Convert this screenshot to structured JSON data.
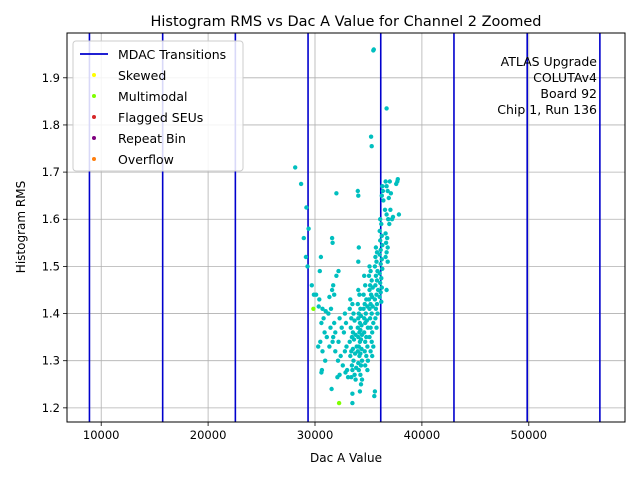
{
  "chart_data": {
    "type": "scatter",
    "title": "Histogram RMS vs Dac A Value for Channel 2 Zoomed",
    "xlabel": "Dac A Value",
    "ylabel": "Histogram RMS",
    "xlim": [
      6800,
      59000
    ],
    "ylim": [
      1.17,
      1.995
    ],
    "xticks": [
      10000,
      20000,
      30000,
      40000,
      50000
    ],
    "yticks": [
      1.2,
      1.3,
      1.4,
      1.5,
      1.6,
      1.7,
      1.8,
      1.9
    ],
    "grid": true,
    "legend_placement": "top-left",
    "annotation": [
      "ATLAS Upgrade",
      "COLUTAv4",
      "Board 92",
      "Chip 1, Run 136"
    ],
    "mdac_transitions": {
      "name": "MDAC Transitions",
      "color": "#0000cd",
      "x": [
        8900,
        15750,
        22550,
        29350,
        36150,
        43000,
        49850,
        56650
      ]
    },
    "series": [
      {
        "name": "Skewed",
        "color": "#ffff00",
        "points": []
      },
      {
        "name": "Multimodal",
        "color": "#7fff00",
        "points": [
          [
            29850,
            1.41
          ],
          [
            32250,
            1.21
          ]
        ]
      },
      {
        "name": "Flagged SEUs",
        "color": "#d62728",
        "points": []
      },
      {
        "name": "Repeat Bin",
        "color": "#800080",
        "points": []
      },
      {
        "name": "Overflow",
        "color": "#ff7f0e",
        "points": []
      },
      {
        "name": "",
        "color": "#00bfbf",
        "points": [
          [
            35500,
            1.96
          ],
          [
            35450,
            1.958
          ],
          [
            36700,
            1.835
          ],
          [
            35250,
            1.775
          ],
          [
            35300,
            1.755
          ],
          [
            28150,
            1.71
          ],
          [
            28700,
            1.675
          ],
          [
            29200,
            1.625
          ],
          [
            29400,
            1.58
          ],
          [
            28950,
            1.56
          ],
          [
            29150,
            1.52
          ],
          [
            29300,
            1.5
          ],
          [
            30550,
            1.52
          ],
          [
            30450,
            1.49
          ],
          [
            29700,
            1.46
          ],
          [
            29900,
            1.44
          ],
          [
            30400,
            1.43
          ],
          [
            30100,
            1.44
          ],
          [
            30350,
            1.415
          ],
          [
            30700,
            1.41
          ],
          [
            30800,
            1.39
          ],
          [
            30600,
            1.38
          ],
          [
            31000,
            1.405
          ],
          [
            30900,
            1.36
          ],
          [
            30500,
            1.34
          ],
          [
            30300,
            1.33
          ],
          [
            31100,
            1.35
          ],
          [
            30700,
            1.32
          ],
          [
            30950,
            1.3
          ],
          [
            30650,
            1.28
          ],
          [
            30600,
            1.275
          ],
          [
            31600,
            1.56
          ],
          [
            31650,
            1.55
          ],
          [
            32000,
            1.655
          ],
          [
            31700,
            1.46
          ],
          [
            31600,
            1.45
          ],
          [
            31500,
            1.41
          ],
          [
            31800,
            1.44
          ],
          [
            31350,
            1.435
          ],
          [
            31250,
            1.4
          ],
          [
            31800,
            1.38
          ],
          [
            31450,
            1.37
          ],
          [
            31900,
            1.36
          ],
          [
            31700,
            1.35
          ],
          [
            31650,
            1.34
          ],
          [
            31350,
            1.33
          ],
          [
            31900,
            1.32
          ],
          [
            31550,
            1.24
          ],
          [
            32200,
            1.49
          ],
          [
            32000,
            1.48
          ],
          [
            32300,
            1.39
          ],
          [
            32500,
            1.37
          ],
          [
            32200,
            1.34
          ],
          [
            32400,
            1.31
          ],
          [
            32150,
            1.3
          ],
          [
            32600,
            1.29
          ],
          [
            32300,
            1.27
          ],
          [
            32100,
            1.265
          ],
          [
            32800,
            1.4
          ],
          [
            32900,
            1.38
          ],
          [
            32700,
            1.36
          ],
          [
            32950,
            1.33
          ],
          [
            32800,
            1.32
          ],
          [
            33000,
            1.28
          ],
          [
            32850,
            1.275
          ],
          [
            33100,
            1.265
          ],
          [
            33300,
            1.43
          ],
          [
            33500,
            1.42
          ],
          [
            33250,
            1.41
          ],
          [
            33600,
            1.4
          ],
          [
            33400,
            1.39
          ],
          [
            33700,
            1.385
          ],
          [
            33350,
            1.37
          ],
          [
            33550,
            1.36
          ],
          [
            33800,
            1.355
          ],
          [
            33450,
            1.35
          ],
          [
            33650,
            1.345
          ],
          [
            33250,
            1.34
          ],
          [
            33900,
            1.33
          ],
          [
            33550,
            1.325
          ],
          [
            33400,
            1.32
          ],
          [
            33750,
            1.315
          ],
          [
            33300,
            1.31
          ],
          [
            33600,
            1.3
          ],
          [
            33450,
            1.29
          ],
          [
            33850,
            1.285
          ],
          [
            33500,
            1.28
          ],
          [
            33700,
            1.27
          ],
          [
            33400,
            1.265
          ],
          [
            33800,
            1.26
          ],
          [
            33500,
            1.23
          ],
          [
            33500,
            1.21
          ],
          [
            34000,
            1.66
          ],
          [
            34050,
            1.65
          ],
          [
            34100,
            1.54
          ],
          [
            34050,
            1.51
          ],
          [
            34050,
            1.45
          ],
          [
            34150,
            1.44
          ],
          [
            34000,
            1.42
          ],
          [
            34250,
            1.41
          ],
          [
            34100,
            1.4
          ],
          [
            34300,
            1.395
          ],
          [
            34050,
            1.39
          ],
          [
            34200,
            1.38
          ],
          [
            34350,
            1.375
          ],
          [
            34000,
            1.37
          ],
          [
            34250,
            1.365
          ],
          [
            34150,
            1.36
          ],
          [
            34400,
            1.355
          ],
          [
            34050,
            1.35
          ],
          [
            34300,
            1.345
          ],
          [
            34200,
            1.34
          ],
          [
            34100,
            1.33
          ],
          [
            34350,
            1.325
          ],
          [
            34000,
            1.32
          ],
          [
            34250,
            1.315
          ],
          [
            34150,
            1.31
          ],
          [
            34400,
            1.3
          ],
          [
            34050,
            1.295
          ],
          [
            34300,
            1.29
          ],
          [
            34100,
            1.28
          ],
          [
            34250,
            1.27
          ],
          [
            34400,
            1.26
          ],
          [
            34300,
            1.25
          ],
          [
            34200,
            1.235
          ],
          [
            34600,
            1.48
          ],
          [
            34700,
            1.46
          ],
          [
            34550,
            1.44
          ],
          [
            34800,
            1.43
          ],
          [
            34650,
            1.42
          ],
          [
            34900,
            1.415
          ],
          [
            34550,
            1.41
          ],
          [
            34750,
            1.4
          ],
          [
            34600,
            1.39
          ],
          [
            34850,
            1.385
          ],
          [
            34700,
            1.38
          ],
          [
            34950,
            1.37
          ],
          [
            34600,
            1.36
          ],
          [
            34800,
            1.35
          ],
          [
            34700,
            1.34
          ],
          [
            34900,
            1.33
          ],
          [
            34650,
            1.32
          ],
          [
            34800,
            1.31
          ],
          [
            34950,
            1.3
          ],
          [
            34700,
            1.29
          ],
          [
            34900,
            1.28
          ],
          [
            35100,
            1.5
          ],
          [
            35200,
            1.49
          ],
          [
            35050,
            1.48
          ],
          [
            35300,
            1.47
          ],
          [
            35150,
            1.46
          ],
          [
            35400,
            1.455
          ],
          [
            35100,
            1.45
          ],
          [
            35250,
            1.44
          ],
          [
            35350,
            1.435
          ],
          [
            35050,
            1.43
          ],
          [
            35200,
            1.42
          ],
          [
            35400,
            1.415
          ],
          [
            35100,
            1.41
          ],
          [
            35300,
            1.4
          ],
          [
            35150,
            1.39
          ],
          [
            35450,
            1.38
          ],
          [
            35200,
            1.37
          ],
          [
            35350,
            1.36
          ],
          [
            35100,
            1.35
          ],
          [
            35300,
            1.34
          ],
          [
            35450,
            1.33
          ],
          [
            35200,
            1.32
          ],
          [
            35350,
            1.31
          ],
          [
            35700,
            1.54
          ],
          [
            35800,
            1.53
          ],
          [
            35650,
            1.52
          ],
          [
            35750,
            1.51
          ],
          [
            35600,
            1.5
          ],
          [
            35850,
            1.49
          ],
          [
            35700,
            1.48
          ],
          [
            35800,
            1.47
          ],
          [
            35650,
            1.46
          ],
          [
            35900,
            1.45
          ],
          [
            35750,
            1.44
          ],
          [
            35600,
            1.43
          ],
          [
            35800,
            1.42
          ],
          [
            35700,
            1.41
          ],
          [
            35850,
            1.4
          ],
          [
            35650,
            1.39
          ],
          [
            35750,
            1.37
          ],
          [
            35600,
            1.235
          ],
          [
            35550,
            1.225
          ],
          [
            36100,
            1.6
          ],
          [
            36200,
            1.59
          ],
          [
            36050,
            1.575
          ],
          [
            36250,
            1.565
          ],
          [
            36100,
            1.555
          ],
          [
            36300,
            1.545
          ],
          [
            36150,
            1.535
          ],
          [
            36050,
            1.525
          ],
          [
            36250,
            1.515
          ],
          [
            36150,
            1.505
          ],
          [
            36300,
            1.495
          ],
          [
            36050,
            1.485
          ],
          [
            36200,
            1.475
          ],
          [
            36100,
            1.465
          ],
          [
            36250,
            1.455
          ],
          [
            36150,
            1.445
          ],
          [
            36050,
            1.435
          ],
          [
            36200,
            1.425
          ],
          [
            36300,
            1.67
          ],
          [
            36350,
            1.66
          ],
          [
            36250,
            1.65
          ],
          [
            36400,
            1.64
          ],
          [
            36600,
            1.68
          ],
          [
            36700,
            1.67
          ],
          [
            36800,
            1.66
          ],
          [
            36550,
            1.62
          ],
          [
            36700,
            1.61
          ],
          [
            36850,
            1.6
          ],
          [
            36600,
            1.57
          ],
          [
            36750,
            1.56
          ],
          [
            36650,
            1.55
          ],
          [
            36800,
            1.54
          ],
          [
            36700,
            1.53
          ],
          [
            36600,
            1.52
          ],
          [
            36800,
            1.51
          ],
          [
            36700,
            1.45
          ],
          [
            37000,
            1.68
          ],
          [
            37100,
            1.655
          ],
          [
            36900,
            1.645
          ],
          [
            37050,
            1.62
          ],
          [
            37200,
            1.6
          ],
          [
            36950,
            1.59
          ],
          [
            37300,
            1.605
          ],
          [
            37600,
            1.675
          ],
          [
            37700,
            1.68
          ],
          [
            37750,
            1.685
          ],
          [
            37850,
            1.61
          ]
        ]
      }
    ]
  }
}
